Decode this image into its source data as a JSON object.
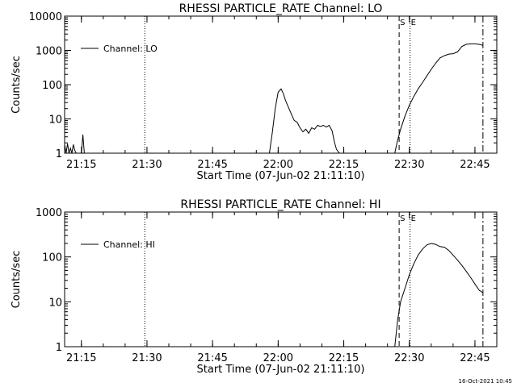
{
  "footer_timestamp": "16-Oct-2021 10:45",
  "chart_data": [
    {
      "type": "line",
      "title": "RHESSI PARTICLE_RATE Channel: LO",
      "xlabel": "Start Time (07-Jun-02 21:11:10)",
      "ylabel": "Counts/sec",
      "yscale": "log",
      "ylim": [
        1,
        10000
      ],
      "xlim": [
        "21:11:10",
        "22:50:00"
      ],
      "yticks": [
        "1",
        "10",
        "100",
        "1000",
        "10000"
      ],
      "xticks": [
        "21:15",
        "21:30",
        "21:45",
        "22:00",
        "22:15",
        "22:30",
        "22:45"
      ],
      "grid": false,
      "legend": {
        "position": "top-left",
        "entries": [
          "Channel: LO"
        ]
      },
      "markers": [
        {
          "label": "",
          "time": "21:29:30",
          "style": "dotted"
        },
        {
          "label": "S",
          "time": "22:27:40",
          "style": "dashed"
        },
        {
          "label": "E",
          "time": "22:30:10",
          "style": "dotted"
        },
        {
          "label": "",
          "time": "22:46:50",
          "style": "dashdot"
        }
      ],
      "series": [
        {
          "name": "Channel: LO",
          "segments": [
            {
              "x": [
                "21:11:10",
                "21:11:30",
                "21:11:50",
                "21:12:10",
                "21:12:30",
                "21:12:50",
                "21:13:10",
                "21:13:30",
                "21:13:50"
              ],
              "y": [
                1.8,
                1,
                1.9,
                1,
                1.4,
                1,
                1.8,
                1.2,
                1
              ]
            },
            {
              "x": [
                "21:15:00",
                "21:15:20",
                "21:15:40"
              ],
              "y": [
                1,
                3.5,
                1
              ]
            },
            {
              "x": [
                "21:58:00",
                "21:58:40",
                "21:59:20",
                "22:00:00",
                "22:00:40",
                "22:01:10",
                "22:01:40",
                "22:02:20",
                "22:03:00",
                "22:03:40",
                "22:04:20",
                "22:05:00",
                "22:05:40",
                "22:06:20",
                "22:07:00",
                "22:07:40",
                "22:08:20",
                "22:09:00",
                "22:09:40",
                "22:10:20",
                "22:11:00",
                "22:11:40",
                "22:12:20",
                "22:12:50",
                "22:13:20",
                "22:14:00"
              ],
              "y": [
                1,
                4,
                20,
                60,
                75,
                55,
                35,
                22,
                14,
                9,
                8,
                5.5,
                4.2,
                5,
                3.8,
                5.5,
                5,
                6.5,
                6,
                6.5,
                5.8,
                6.5,
                4.5,
                2.2,
                1.3,
                1
              ]
            },
            {
              "x": [
                "22:26:40",
                "22:27:10",
                "22:28:00",
                "22:29:00",
                "22:30:00",
                "22:31:00",
                "22:32:00",
                "22:33:00",
                "22:34:00",
                "22:35:00",
                "22:36:00",
                "22:37:00",
                "22:38:00",
                "22:39:00",
                "22:40:00",
                "22:41:00",
                "22:42:00",
                "22:43:00",
                "22:44:00",
                "22:45:00",
                "22:46:00",
                "22:46:50"
              ],
              "y": [
                1,
                2,
                5,
                12,
                25,
                45,
                75,
                115,
                180,
                280,
                420,
                600,
                700,
                780,
                800,
                900,
                1300,
                1500,
                1550,
                1550,
                1500,
                1400
              ]
            }
          ]
        }
      ]
    },
    {
      "type": "line",
      "title": "RHESSI PARTICLE_RATE Channel: HI",
      "xlabel": "Start Time (07-Jun-02 21:11:10)",
      "ylabel": "Counts/sec",
      "yscale": "log",
      "ylim": [
        1,
        1000
      ],
      "xlim": [
        "21:11:10",
        "22:50:00"
      ],
      "yticks": [
        "1",
        "10",
        "100",
        "1000"
      ],
      "xticks": [
        "21:15",
        "21:30",
        "21:45",
        "22:00",
        "22:15",
        "22:30",
        "22:45"
      ],
      "grid": false,
      "legend": {
        "position": "top-left",
        "entries": [
          "Channel: HI"
        ]
      },
      "markers": [
        {
          "label": "",
          "time": "21:29:30",
          "style": "dotted"
        },
        {
          "label": "S",
          "time": "22:27:40",
          "style": "dashed"
        },
        {
          "label": "E",
          "time": "22:30:10",
          "style": "dotted"
        },
        {
          "label": "",
          "time": "22:46:50",
          "style": "dashdot"
        }
      ],
      "series": [
        {
          "name": "Channel: HI",
          "segments": [
            {
              "x": [
                "22:26:40",
                "22:27:20",
                "22:28:00",
                "22:29:00",
                "22:30:00",
                "22:31:00",
                "22:32:00",
                "22:33:00",
                "22:34:00",
                "22:35:00",
                "22:36:00",
                "22:37:00",
                "22:38:00",
                "22:39:00",
                "22:40:00",
                "22:41:00",
                "22:42:00",
                "22:43:00",
                "22:44:00",
                "22:45:00",
                "22:46:00",
                "22:46:50"
              ],
              "y": [
                1,
                4,
                10,
                20,
                40,
                70,
                110,
                150,
                185,
                200,
                190,
                170,
                165,
                140,
                110,
                85,
                65,
                48,
                35,
                25,
                18,
                16
              ]
            }
          ]
        }
      ]
    }
  ]
}
